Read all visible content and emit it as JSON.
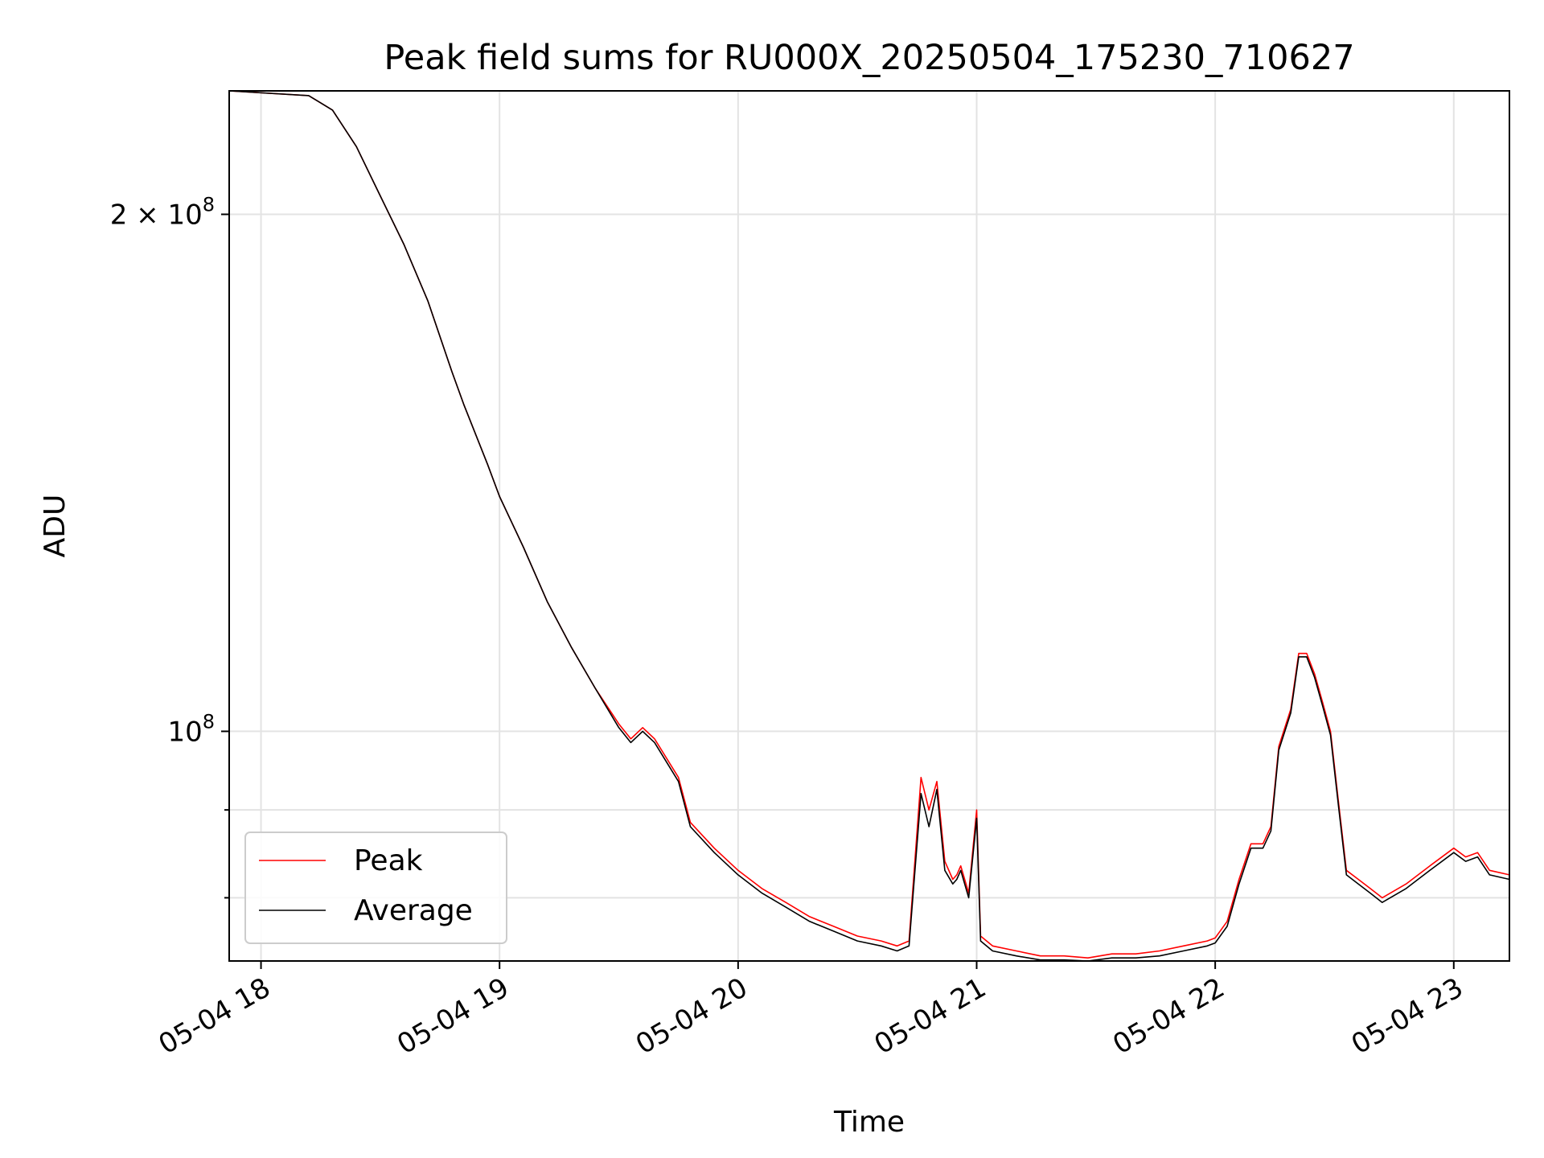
{
  "chart_data": {
    "type": "line",
    "title": "Peak field sums for RU000X_20250504_175230_710627",
    "xlabel": "Time",
    "ylabel": "ADU",
    "yscale": "log",
    "xlim": [
      "2025-05-04 17:52",
      "2025-05-04 23:14"
    ],
    "ylim": [
      73500000,
      236000000
    ],
    "x_ticks": [
      {
        "t": "2025-05-04 18:00",
        "label": "05-04 18"
      },
      {
        "t": "2025-05-04 19:00",
        "label": "05-04 19"
      },
      {
        "t": "2025-05-04 20:00",
        "label": "05-04 20"
      },
      {
        "t": "2025-05-04 21:00",
        "label": "05-04 21"
      },
      {
        "t": "2025-05-04 22:00",
        "label": "05-04 22"
      },
      {
        "t": "2025-05-04 23:00",
        "label": "05-04 23"
      }
    ],
    "y_ticks": [
      {
        "v": 100000000,
        "label": "10",
        "sup": "8"
      },
      {
        "v": 200000000,
        "label": "2 × 10",
        "sup": "8"
      }
    ],
    "y_minor_ticks": [
      80000000,
      90000000
    ],
    "grid": true,
    "legend_position": "lower-left",
    "series": [
      {
        "name": "Peak",
        "color": "#ff0000",
        "points": [
          [
            "2025-05-04 17:52",
            236000000
          ],
          [
            "2025-05-04 18:12",
            234500000
          ],
          [
            "2025-05-04 18:18",
            230000000
          ],
          [
            "2025-05-04 18:24",
            219000000
          ],
          [
            "2025-05-04 18:30",
            205000000
          ],
          [
            "2025-05-04 18:36",
            192000000
          ],
          [
            "2025-05-04 18:42",
            178000000
          ],
          [
            "2025-05-04 18:48",
            162000000
          ],
          [
            "2025-05-04 18:51",
            155000000
          ],
          [
            "2025-05-04 18:57",
            143000000
          ],
          [
            "2025-05-04 19:00",
            137000000
          ],
          [
            "2025-05-04 19:06",
            128000000
          ],
          [
            "2025-05-04 19:12",
            119000000
          ],
          [
            "2025-05-04 19:18",
            112000000
          ],
          [
            "2025-05-04 19:24",
            106000000
          ],
          [
            "2025-05-04 19:30",
            101000000
          ],
          [
            "2025-05-04 19:33",
            99000000
          ],
          [
            "2025-05-04 19:36",
            100500000
          ],
          [
            "2025-05-04 19:39",
            99000000
          ],
          [
            "2025-05-04 19:45",
            94000000
          ],
          [
            "2025-05-04 19:48",
            88500000
          ],
          [
            "2025-05-04 19:54",
            85500000
          ],
          [
            "2025-05-04 20:00",
            83000000
          ],
          [
            "2025-05-04 20:06",
            81000000
          ],
          [
            "2025-05-04 20:12",
            79500000
          ],
          [
            "2025-05-04 20:18",
            78000000
          ],
          [
            "2025-05-04 20:24",
            77000000
          ],
          [
            "2025-05-04 20:30",
            76000000
          ],
          [
            "2025-05-04 20:36",
            75500000
          ],
          [
            "2025-05-04 20:40",
            75000000
          ],
          [
            "2025-05-04 20:43",
            75500000
          ],
          [
            "2025-05-04 20:46",
            94000000
          ],
          [
            "2025-05-04 20:48",
            90000000
          ],
          [
            "2025-05-04 20:50",
            93500000
          ],
          [
            "2025-05-04 20:52",
            84000000
          ],
          [
            "2025-05-04 20:54",
            82000000
          ],
          [
            "2025-05-04 20:55",
            82500000
          ],
          [
            "2025-05-04 20:56",
            83500000
          ],
          [
            "2025-05-04 20:58",
            80500000
          ],
          [
            "2025-05-04 21:00",
            90000000
          ],
          [
            "2025-05-04 21:01",
            76000000
          ],
          [
            "2025-05-04 21:04",
            75000000
          ],
          [
            "2025-05-04 21:10",
            74500000
          ],
          [
            "2025-05-04 21:16",
            74000000
          ],
          [
            "2025-05-04 21:22",
            74000000
          ],
          [
            "2025-05-04 21:28",
            73800000
          ],
          [
            "2025-05-04 21:34",
            74200000
          ],
          [
            "2025-05-04 21:40",
            74200000
          ],
          [
            "2025-05-04 21:46",
            74500000
          ],
          [
            "2025-05-04 21:52",
            75000000
          ],
          [
            "2025-05-04 21:58",
            75500000
          ],
          [
            "2025-05-04 22:00",
            75800000
          ],
          [
            "2025-05-04 22:03",
            77500000
          ],
          [
            "2025-05-04 22:06",
            82000000
          ],
          [
            "2025-05-04 22:09",
            86000000
          ],
          [
            "2025-05-04 22:12",
            86000000
          ],
          [
            "2025-05-04 22:14",
            88000000
          ],
          [
            "2025-05-04 22:16",
            98000000
          ],
          [
            "2025-05-04 22:19",
            103000000
          ],
          [
            "2025-05-04 22:21",
            111000000
          ],
          [
            "2025-05-04 22:23",
            111000000
          ],
          [
            "2025-05-04 22:25",
            108000000
          ],
          [
            "2025-05-04 22:27",
            104000000
          ],
          [
            "2025-05-04 22:29",
            100000000
          ],
          [
            "2025-05-04 22:31",
            91000000
          ],
          [
            "2025-05-04 22:33",
            83000000
          ],
          [
            "2025-05-04 22:36",
            82000000
          ],
          [
            "2025-05-04 22:39",
            81000000
          ],
          [
            "2025-05-04 22:42",
            80000000
          ],
          [
            "2025-05-04 22:48",
            81500000
          ],
          [
            "2025-05-04 22:54",
            83500000
          ],
          [
            "2025-05-04 23:00",
            85500000
          ],
          [
            "2025-05-04 23:03",
            84500000
          ],
          [
            "2025-05-04 23:06",
            85000000
          ],
          [
            "2025-05-04 23:09",
            83000000
          ],
          [
            "2025-05-04 23:14",
            82500000
          ]
        ]
      },
      {
        "name": "Average",
        "color": "#000000",
        "points": [
          [
            "2025-05-04 17:52",
            236000000
          ],
          [
            "2025-05-04 18:12",
            234500000
          ],
          [
            "2025-05-04 18:18",
            230000000
          ],
          [
            "2025-05-04 18:24",
            219000000
          ],
          [
            "2025-05-04 18:30",
            205000000
          ],
          [
            "2025-05-04 18:36",
            192000000
          ],
          [
            "2025-05-04 18:42",
            178000000
          ],
          [
            "2025-05-04 18:48",
            162000000
          ],
          [
            "2025-05-04 18:51",
            155000000
          ],
          [
            "2025-05-04 18:57",
            143000000
          ],
          [
            "2025-05-04 19:00",
            137000000
          ],
          [
            "2025-05-04 19:06",
            128000000
          ],
          [
            "2025-05-04 19:12",
            119000000
          ],
          [
            "2025-05-04 19:18",
            112000000
          ],
          [
            "2025-05-04 19:24",
            106000000
          ],
          [
            "2025-05-04 19:30",
            100500000
          ],
          [
            "2025-05-04 19:33",
            98500000
          ],
          [
            "2025-05-04 19:36",
            100000000
          ],
          [
            "2025-05-04 19:39",
            98500000
          ],
          [
            "2025-05-04 19:45",
            93500000
          ],
          [
            "2025-05-04 19:48",
            88000000
          ],
          [
            "2025-05-04 19:54",
            85000000
          ],
          [
            "2025-05-04 20:00",
            82500000
          ],
          [
            "2025-05-04 20:06",
            80500000
          ],
          [
            "2025-05-04 20:12",
            79000000
          ],
          [
            "2025-05-04 20:18",
            77500000
          ],
          [
            "2025-05-04 20:24",
            76500000
          ],
          [
            "2025-05-04 20:30",
            75500000
          ],
          [
            "2025-05-04 20:36",
            75000000
          ],
          [
            "2025-05-04 20:40",
            74500000
          ],
          [
            "2025-05-04 20:43",
            75000000
          ],
          [
            "2025-05-04 20:46",
            92000000
          ],
          [
            "2025-05-04 20:48",
            88000000
          ],
          [
            "2025-05-04 20:50",
            92500000
          ],
          [
            "2025-05-04 20:52",
            83000000
          ],
          [
            "2025-05-04 20:54",
            81500000
          ],
          [
            "2025-05-04 20:55",
            82000000
          ],
          [
            "2025-05-04 20:56",
            83000000
          ],
          [
            "2025-05-04 20:58",
            80000000
          ],
          [
            "2025-05-04 21:00",
            89000000
          ],
          [
            "2025-05-04 21:01",
            75500000
          ],
          [
            "2025-05-04 21:04",
            74500000
          ],
          [
            "2025-05-04 21:10",
            74000000
          ],
          [
            "2025-05-04 21:16",
            73600000
          ],
          [
            "2025-05-04 21:22",
            73600000
          ],
          [
            "2025-05-04 21:28",
            73500000
          ],
          [
            "2025-05-04 21:34",
            73800000
          ],
          [
            "2025-05-04 21:40",
            73800000
          ],
          [
            "2025-05-04 21:46",
            74000000
          ],
          [
            "2025-05-04 21:52",
            74500000
          ],
          [
            "2025-05-04 21:58",
            75000000
          ],
          [
            "2025-05-04 22:00",
            75300000
          ],
          [
            "2025-05-04 22:03",
            77000000
          ],
          [
            "2025-05-04 22:06",
            81500000
          ],
          [
            "2025-05-04 22:09",
            85500000
          ],
          [
            "2025-05-04 22:12",
            85500000
          ],
          [
            "2025-05-04 22:14",
            87500000
          ],
          [
            "2025-05-04 22:16",
            97500000
          ],
          [
            "2025-05-04 22:19",
            102500000
          ],
          [
            "2025-05-04 22:21",
            110500000
          ],
          [
            "2025-05-04 22:23",
            110500000
          ],
          [
            "2025-05-04 22:25",
            107500000
          ],
          [
            "2025-05-04 22:27",
            103500000
          ],
          [
            "2025-05-04 22:29",
            99500000
          ],
          [
            "2025-05-04 22:31",
            90500000
          ],
          [
            "2025-05-04 22:33",
            82500000
          ],
          [
            "2025-05-04 22:36",
            81500000
          ],
          [
            "2025-05-04 22:39",
            80500000
          ],
          [
            "2025-05-04 22:42",
            79500000
          ],
          [
            "2025-05-04 22:48",
            81000000
          ],
          [
            "2025-05-04 22:54",
            83000000
          ],
          [
            "2025-05-04 23:00",
            85000000
          ],
          [
            "2025-05-04 23:03",
            84000000
          ],
          [
            "2025-05-04 23:06",
            84500000
          ],
          [
            "2025-05-04 23:09",
            82500000
          ],
          [
            "2025-05-04 23:14",
            82000000
          ]
        ]
      }
    ]
  }
}
